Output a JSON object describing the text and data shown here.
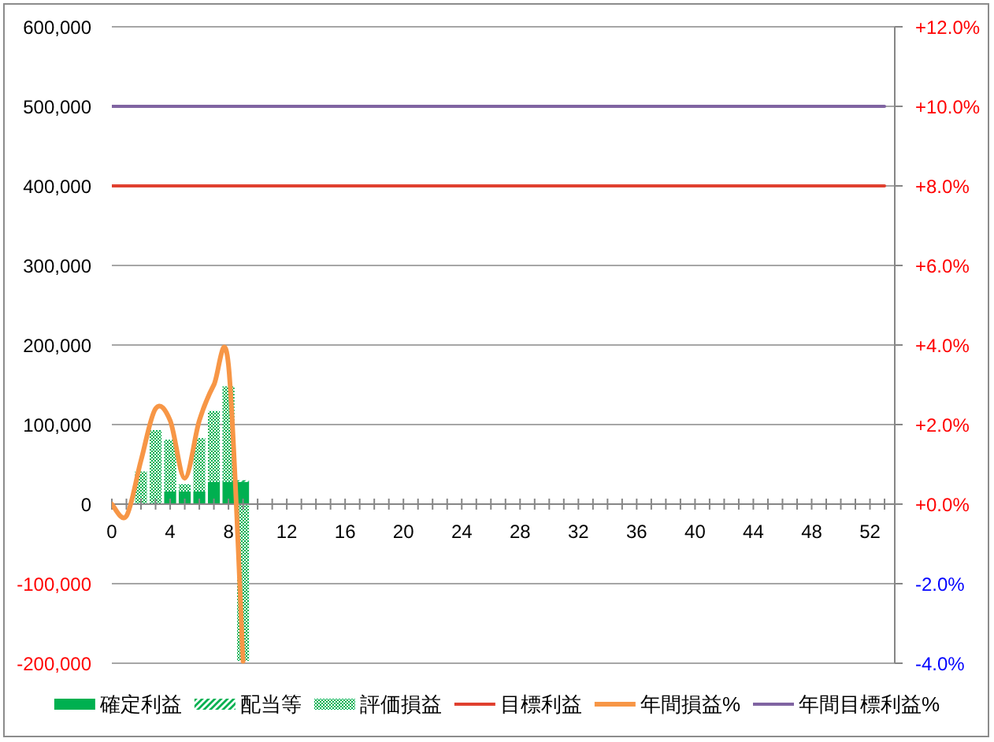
{
  "chart_data": {
    "type": "bar",
    "stacked": true,
    "x": [
      0,
      1,
      2,
      3,
      4,
      5,
      6,
      7,
      8,
      9,
      10,
      11,
      12,
      13,
      14,
      15,
      16,
      17,
      18,
      19,
      20,
      21,
      22,
      23,
      24,
      25,
      26,
      27,
      28,
      29,
      30,
      31,
      32,
      33,
      34,
      35,
      36,
      37,
      38,
      39,
      40,
      41,
      42,
      43,
      44,
      45,
      46,
      47,
      48,
      49,
      50,
      51,
      52,
      53
    ],
    "series": [
      {
        "name": "確定利益",
        "color": "#00b050",
        "values": [
          null,
          null,
          null,
          null,
          16000,
          16000,
          16000,
          28000,
          28000,
          28000,
          null,
          null,
          null,
          null,
          null,
          null,
          null,
          null,
          null,
          null,
          null,
          null,
          null,
          null,
          null,
          null,
          null,
          null,
          null,
          null,
          null,
          null,
          null,
          null,
          null,
          null,
          null,
          null,
          null,
          null,
          null,
          null,
          null,
          null,
          null,
          null,
          null,
          null,
          null,
          null,
          null,
          null,
          null,
          null
        ]
      },
      {
        "name": "配当等",
        "color": "#00b050",
        "values": [
          null,
          null,
          null,
          null,
          null,
          null,
          null,
          null,
          null,
          2000,
          null,
          null,
          null,
          null,
          null,
          null,
          null,
          null,
          null,
          null,
          null,
          null,
          null,
          null,
          null,
          null,
          null,
          null,
          null,
          null,
          null,
          null,
          null,
          null,
          null,
          null,
          null,
          null,
          null,
          null,
          null,
          null,
          null,
          null,
          null,
          null,
          null,
          null,
          null,
          null,
          null,
          null,
          null,
          null
        ]
      },
      {
        "name": "評価損益",
        "color": "#00b050",
        "values": [
          null,
          null,
          41000,
          93000,
          65000,
          9000,
          67000,
          89000,
          120000,
          -197000,
          null,
          null,
          null,
          null,
          null,
          null,
          null,
          null,
          null,
          null,
          null,
          null,
          null,
          null,
          null,
          null,
          null,
          null,
          null,
          null,
          null,
          null,
          null,
          null,
          null,
          null,
          null,
          null,
          null,
          null,
          null,
          null,
          null,
          null,
          null,
          null,
          null,
          null,
          null,
          null,
          null,
          null,
          null,
          null
        ]
      },
      {
        "name": "目標利益",
        "type": "line",
        "color": "#e0402f",
        "values": [
          400000,
          400000,
          400000,
          400000,
          400000,
          400000,
          400000,
          400000,
          400000,
          400000,
          400000,
          400000,
          400000,
          400000,
          400000,
          400000,
          400000,
          400000,
          400000,
          400000,
          400000,
          400000,
          400000,
          400000,
          400000,
          400000,
          400000,
          400000,
          400000,
          400000,
          400000,
          400000,
          400000,
          400000,
          400000,
          400000,
          400000,
          400000,
          400000,
          400000,
          400000,
          400000,
          400000,
          400000,
          400000,
          400000,
          400000,
          400000,
          400000,
          400000,
          400000,
          400000,
          400000,
          400000
        ]
      },
      {
        "name": "年間損益%",
        "type": "line",
        "axis": "y2",
        "color": "#f79646",
        "values": [
          0.0,
          -0.3,
          1.1,
          2.4,
          2.1,
          0.65,
          2.1,
          3.0,
          3.5,
          -3.95,
          null,
          null,
          null,
          null,
          null,
          null,
          null,
          null,
          null,
          null,
          null,
          null,
          null,
          null,
          null,
          null,
          null,
          null,
          null,
          null,
          null,
          null,
          null,
          null,
          null,
          null,
          null,
          null,
          null,
          null,
          null,
          null,
          null,
          null,
          null,
          null,
          null,
          null,
          null,
          null,
          null,
          null,
          null,
          null
        ]
      },
      {
        "name": "年間目標利益%",
        "type": "line",
        "axis": "y2",
        "color": "#8064a2",
        "values": [
          10,
          10,
          10,
          10,
          10,
          10,
          10,
          10,
          10,
          10,
          10,
          10,
          10,
          10,
          10,
          10,
          10,
          10,
          10,
          10,
          10,
          10,
          10,
          10,
          10,
          10,
          10,
          10,
          10,
          10,
          10,
          10,
          10,
          10,
          10,
          10,
          10,
          10,
          10,
          10,
          10,
          10,
          10,
          10,
          10,
          10,
          10,
          10,
          10,
          10,
          10,
          10,
          10,
          10
        ]
      }
    ],
    "xlim": [
      0,
      53.7
    ],
    "xticks": [
      0,
      {
        "value": 1,
        "label": null
      },
      {
        "value": 2,
        "label": null
      },
      {
        "value": 3,
        "label": null
      },
      4,
      {
        "value": 5,
        "label": null
      },
      {
        "value": 6,
        "label": null
      },
      {
        "value": 7,
        "label": null
      },
      8,
      {
        "value": 9,
        "label": null
      },
      {
        "value": 10,
        "label": null
      },
      {
        "value": 11,
        "label": null
      },
      12,
      {
        "value": 13,
        "label": null
      },
      {
        "value": 14,
        "label": null
      },
      {
        "value": 15,
        "label": null
      },
      16,
      {
        "value": 17,
        "label": null
      },
      {
        "value": 18,
        "label": null
      },
      {
        "value": 19,
        "label": null
      },
      20,
      {
        "value": 21,
        "label": null
      },
      {
        "value": 22,
        "label": null
      },
      {
        "value": 23,
        "label": null
      },
      24,
      {
        "value": 25,
        "label": null
      },
      {
        "value": 26,
        "label": null
      },
      {
        "value": 27,
        "label": null
      },
      28,
      {
        "value": 29,
        "label": null
      },
      {
        "value": 30,
        "label": null
      },
      {
        "value": 31,
        "label": null
      },
      32,
      {
        "value": 33,
        "label": null
      },
      {
        "value": 34,
        "label": null
      },
      {
        "value": 35,
        "label": null
      },
      36,
      {
        "value": 37,
        "label": null
      },
      {
        "value": 38,
        "label": null
      },
      {
        "value": 39,
        "label": null
      },
      40,
      {
        "value": 41,
        "label": null
      },
      {
        "value": 42,
        "label": null
      },
      {
        "value": 43,
        "label": null
      },
      44,
      {
        "value": 45,
        "label": null
      },
      {
        "value": 46,
        "label": null
      },
      {
        "value": 47,
        "label": null
      },
      48,
      {
        "value": 49,
        "label": null
      },
      {
        "value": 50,
        "label": null
      },
      {
        "value": 51,
        "label": null
      },
      52,
      {
        "value": 53,
        "label": null
      }
    ],
    "ylim": [
      -200000,
      600000
    ],
    "yticks": [
      {
        "value": 600000,
        "label": "600,000"
      },
      {
        "value": 500000,
        "label": "500,000"
      },
      {
        "value": 400000,
        "label": "400,000"
      },
      {
        "value": 300000,
        "label": "300,000"
      },
      {
        "value": 200000,
        "label": "200,000"
      },
      {
        "value": 100000,
        "label": "100,000"
      },
      0,
      {
        "value": -100000,
        "label": "-100,000"
      },
      {
        "value": -200000,
        "label": "-200,000"
      }
    ],
    "y2lim": [
      -4,
      12
    ],
    "y2ticks": [
      {
        "value": 12,
        "label": "+12.0%"
      },
      {
        "value": 10,
        "label": "+10.0%"
      },
      {
        "value": 8,
        "label": "+8.0%"
      },
      {
        "value": 6,
        "label": "+6.0%"
      },
      {
        "value": 4,
        "label": "+4.0%"
      },
      {
        "value": 2,
        "label": "+2.0%"
      },
      {
        "value": 0,
        "label": "+0.0%"
      },
      {
        "value": -2,
        "label": "-2.0%"
      },
      {
        "value": -4,
        "label": "-4.0%"
      }
    ],
    "grid": "y",
    "legend": "bottom"
  }
}
